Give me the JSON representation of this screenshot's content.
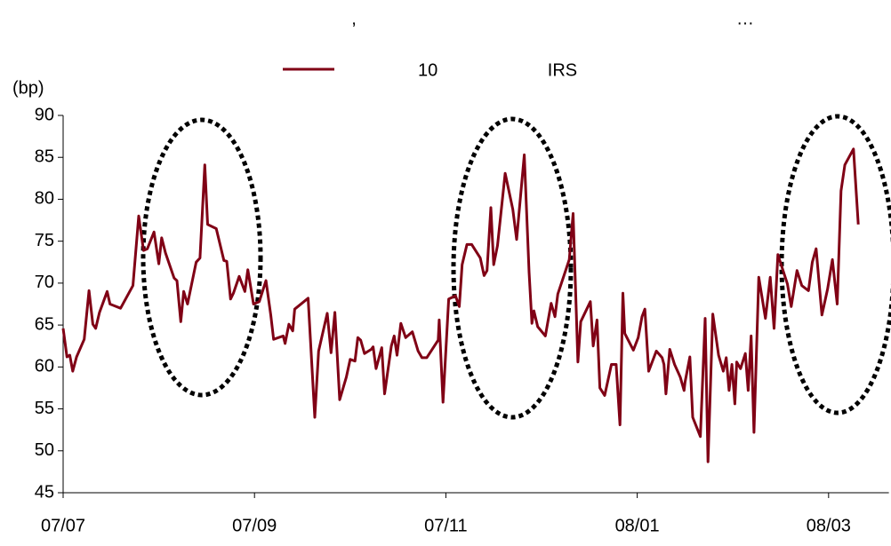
{
  "chart_data": {
    "type": "line",
    "title_parts": [
      ",",
      "…"
    ],
    "y_label": "(bp)",
    "xlim": [
      0,
      8.63
    ],
    "xticks": [
      {
        "value": 0,
        "label": "07/07"
      },
      {
        "value": 2,
        "label": "07/09"
      },
      {
        "value": 4,
        "label": "07/11"
      },
      {
        "value": 6,
        "label": "08/01"
      },
      {
        "value": 8,
        "label": "08/03"
      }
    ],
    "ylim": [
      45,
      90
    ],
    "yticks": [
      45,
      50,
      55,
      60,
      65,
      70,
      75,
      80,
      85,
      90
    ],
    "grid": false,
    "legend": "top",
    "series": [
      {
        "name": "10 IRS",
        "color": "#800015",
        "x": [
          0,
          0.04,
          0.07,
          0.1,
          0.14,
          0.22,
          0.27,
          0.31,
          0.34,
          0.38,
          0.46,
          0.49,
          0.6,
          0.73,
          0.79,
          0.84,
          0.88,
          0.95,
          1.0,
          1.03,
          1.07,
          1.16,
          1.19,
          1.23,
          1.26,
          1.3,
          1.39,
          1.43,
          1.48,
          1.51,
          1.6,
          1.68,
          1.71,
          1.75,
          1.78,
          1.84,
          1.9,
          1.93,
          1.99,
          2.05,
          2.12,
          2.17,
          2.2,
          2.3,
          2.32,
          2.36,
          2.4,
          2.42,
          2.56,
          2.63,
          2.67,
          2.76,
          2.8,
          2.84,
          2.89,
          2.96,
          3.0,
          3.05,
          3.08,
          3.11,
          3.15,
          3.22,
          3.24,
          3.27,
          3.33,
          3.36,
          3.43,
          3.46,
          3.49,
          3.53,
          3.58,
          3.65,
          3.71,
          3.75,
          3.8,
          3.92,
          3.93,
          3.97,
          4.03,
          4.1,
          4.14,
          4.17,
          4.22,
          4.27,
          4.36,
          4.4,
          4.43,
          4.47,
          4.5,
          4.54,
          4.62,
          4.7,
          4.74,
          4.82,
          4.87,
          4.9,
          4.92,
          4.96,
          5.04,
          5.1,
          5.14,
          5.17,
          5.29,
          5.33,
          5.38,
          5.41,
          5.51,
          5.54,
          5.58,
          5.61,
          5.66,
          5.73,
          5.78,
          5.82,
          5.85,
          5.87,
          5.96,
          6.01,
          6.05,
          6.08,
          6.12,
          6.2,
          6.26,
          6.28,
          6.3,
          6.34,
          6.39,
          6.45,
          6.49,
          6.5,
          6.55,
          6.58,
          6.66,
          6.71,
          6.74,
          6.79,
          6.85,
          6.9,
          6.93,
          6.96,
          6.99,
          7.02,
          7.04,
          7.08,
          7.13,
          7.16,
          7.19,
          7.22,
          7.27,
          7.34,
          7.39,
          7.43,
          7.47,
          7.57,
          7.61,
          7.67,
          7.72,
          7.79,
          7.83,
          7.87,
          7.93,
          7.99,
          8.04,
          8.09,
          8.13,
          8.17,
          8.26,
          8.31
        ],
        "values": [
          64.6,
          61.2,
          61.4,
          59.5,
          61.2,
          63.3,
          69.1,
          65.1,
          64.6,
          66.5,
          69,
          67.5,
          67,
          69.7,
          78,
          73.9,
          74.1,
          76.1,
          72.3,
          75.4,
          73.6,
          70.6,
          70.3,
          65.4,
          69,
          67.5,
          72.5,
          73,
          84.1,
          77,
          76.5,
          72.7,
          72.6,
          68.1,
          68.8,
          70.8,
          69,
          71.6,
          67.5,
          67.8,
          70.3,
          66.2,
          63.3,
          63.7,
          62.8,
          65.1,
          64.3,
          66.9,
          68.2,
          54,
          61.9,
          66.4,
          61.7,
          66.5,
          56.1,
          58.8,
          60.9,
          60.7,
          63.5,
          63.2,
          61.6,
          62.1,
          62.4,
          59.8,
          62.3,
          56.8,
          62.5,
          63.7,
          61.4,
          65.2,
          63.5,
          64.2,
          61.9,
          61.1,
          61.1,
          63.2,
          65.6,
          55.8,
          68.1,
          68.5,
          67.2,
          72.2,
          74.6,
          74.6,
          73,
          70.9,
          71.5,
          79,
          72.2,
          74.5,
          83.1,
          78.8,
          75.2,
          85.3,
          71.3,
          65.2,
          66.7,
          64.8,
          63.7,
          67.6,
          66,
          68.7,
          72.8,
          78.3,
          60.6,
          65.4,
          67.8,
          62.5,
          65.6,
          57.5,
          56.6,
          60.3,
          60.3,
          53.1,
          68.8,
          64,
          62,
          63.5,
          66,
          66.9,
          59.5,
          61.9,
          61.1,
          60.3,
          56.8,
          62.1,
          60.3,
          58.8,
          57.2,
          58.2,
          61.2,
          54,
          51.7,
          65.8,
          48.7,
          66.3,
          61.4,
          59.5,
          61.1,
          57.2,
          60.3,
          55.6,
          60.6,
          59.8,
          61.6,
          57.2,
          63.7,
          52.2,
          70.7,
          65.8,
          70.7,
          64.6,
          73.4,
          69.9,
          67.2,
          71.5,
          69.7,
          69.1,
          72.5,
          74.1,
          66.2,
          69.3,
          72.8,
          67.5,
          81,
          84.1,
          86,
          77
        ]
      }
    ]
  }
}
